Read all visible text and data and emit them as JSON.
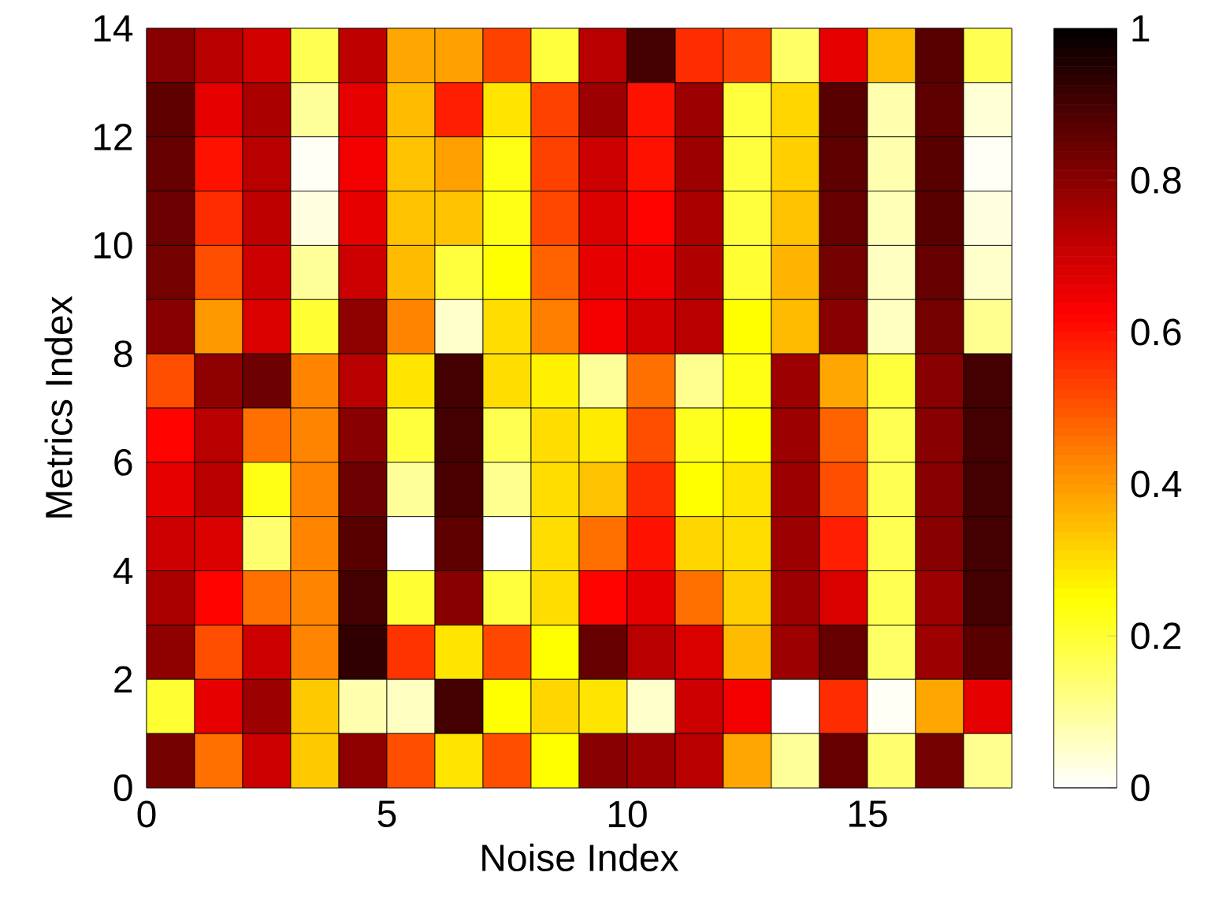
{
  "chart_data": {
    "type": "heatmap",
    "xlabel": "Noise Index",
    "ylabel": "Metrics Index",
    "xlim": [
      0,
      18
    ],
    "xticks": [
      0,
      5,
      10,
      15
    ],
    "ylim": [
      0,
      14
    ],
    "yticks": [
      0,
      2,
      4,
      6,
      8,
      10,
      12,
      14
    ],
    "clim": [
      0,
      1
    ],
    "cticks": [
      0,
      0.2,
      0.4,
      0.6,
      0.8,
      1
    ],
    "cells": [
      [
        0.8,
        0.73,
        0.69,
        0.17,
        0.72,
        0.38,
        0.39,
        0.53,
        0.19,
        0.73,
        0.9,
        0.56,
        0.53,
        0.15,
        0.66,
        0.35,
        0.87,
        0.17
      ],
      [
        0.86,
        0.66,
        0.75,
        0.1,
        0.66,
        0.35,
        0.58,
        0.29,
        0.53,
        0.77,
        0.6,
        0.77,
        0.19,
        0.31,
        0.87,
        0.08,
        0.86,
        0.04
      ],
      [
        0.85,
        0.6,
        0.73,
        0.01,
        0.64,
        0.34,
        0.39,
        0.23,
        0.53,
        0.7,
        0.6,
        0.77,
        0.19,
        0.32,
        0.86,
        0.08,
        0.87,
        0.01
      ],
      [
        0.84,
        0.56,
        0.72,
        0.03,
        0.66,
        0.34,
        0.34,
        0.23,
        0.52,
        0.68,
        0.62,
        0.75,
        0.19,
        0.34,
        0.85,
        0.07,
        0.87,
        0.03
      ],
      [
        0.83,
        0.51,
        0.7,
        0.1,
        0.7,
        0.35,
        0.19,
        0.25,
        0.48,
        0.66,
        0.65,
        0.74,
        0.2,
        0.36,
        0.83,
        0.06,
        0.85,
        0.05
      ],
      [
        0.8,
        0.4,
        0.68,
        0.2,
        0.79,
        0.43,
        0.05,
        0.3,
        0.44,
        0.64,
        0.69,
        0.73,
        0.25,
        0.35,
        0.8,
        0.06,
        0.83,
        0.11
      ],
      [
        0.51,
        0.79,
        0.84,
        0.43,
        0.73,
        0.29,
        0.9,
        0.3,
        0.27,
        0.1,
        0.46,
        0.11,
        0.23,
        0.77,
        0.38,
        0.19,
        0.8,
        0.9
      ],
      [
        0.62,
        0.73,
        0.46,
        0.43,
        0.8,
        0.19,
        0.9,
        0.17,
        0.3,
        0.28,
        0.51,
        0.22,
        0.25,
        0.77,
        0.48,
        0.17,
        0.8,
        0.9
      ],
      [
        0.66,
        0.73,
        0.23,
        0.43,
        0.84,
        0.1,
        0.89,
        0.11,
        0.3,
        0.34,
        0.56,
        0.25,
        0.29,
        0.77,
        0.51,
        0.17,
        0.8,
        0.9
      ],
      [
        0.7,
        0.68,
        0.14,
        0.43,
        0.87,
        0,
        0.86,
        0,
        0.3,
        0.46,
        0.6,
        0.31,
        0.3,
        0.77,
        0.58,
        0.17,
        0.8,
        0.9
      ],
      [
        0.75,
        0.62,
        0.46,
        0.43,
        0.9,
        0.2,
        0.8,
        0.19,
        0.3,
        0.62,
        0.66,
        0.46,
        0.32,
        0.77,
        0.68,
        0.17,
        0.77,
        0.9
      ],
      [
        0.79,
        0.51,
        0.7,
        0.43,
        0.93,
        0.55,
        0.29,
        0.52,
        0.25,
        0.85,
        0.73,
        0.68,
        0.35,
        0.77,
        0.85,
        0.15,
        0.77,
        0.87
      ],
      [
        0.2,
        0.66,
        0.77,
        0.33,
        0.08,
        0.06,
        0.9,
        0.25,
        0.31,
        0.29,
        0.05,
        0.7,
        0.64,
        0,
        0.56,
        0.01,
        0.38,
        0.66
      ],
      [
        0.83,
        0.46,
        0.7,
        0.33,
        0.79,
        0.51,
        0.29,
        0.51,
        0.25,
        0.8,
        0.77,
        0.73,
        0.38,
        0.1,
        0.85,
        0.14,
        0.83,
        0.11
      ]
    ]
  }
}
